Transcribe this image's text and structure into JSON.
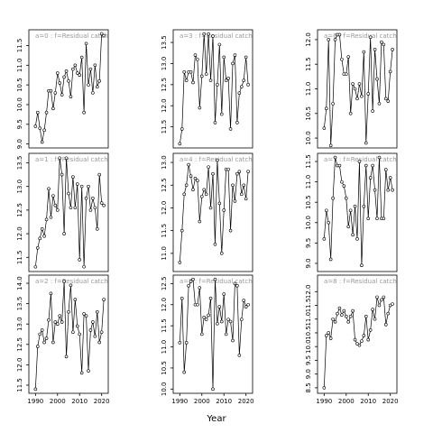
{
  "xlabel": "Year",
  "chart_data": [
    {
      "type": "line",
      "title": "a=0 : f=Residual catch",
      "color": "#000000",
      "xlim": [
        1987,
        2023
      ],
      "ylim": [
        8.9,
        11.9
      ],
      "yticks": [
        {
          "value": 9,
          "label": "9.0"
        },
        9.5,
        {
          "value": 10,
          "label": "10.0"
        },
        10.5,
        {
          "value": 11,
          "label": "11.0"
        },
        11.5
      ],
      "x": [
        1990,
        1991,
        1992,
        1993,
        1994,
        1995,
        1996,
        1997,
        1998,
        1999,
        2000,
        2001,
        2002,
        2003,
        2004,
        2005,
        2006,
        2007,
        2008,
        2009,
        2010,
        2011,
        2012,
        2013,
        2014,
        2015,
        2016,
        2017,
        2018,
        2019,
        2020,
        2021
      ],
      "values": [
        9.45,
        9.8,
        9.4,
        9.05,
        9.35,
        9.8,
        10.35,
        10.35,
        9.9,
        10.3,
        10.8,
        10.55,
        10.25,
        10.7,
        10.85,
        10.6,
        10.2,
        10.9,
        11.0,
        10.8,
        10.75,
        11.2,
        9.8,
        11.55,
        10.5,
        10.9,
        10.3,
        11.0,
        10.45,
        10.6,
        11.8,
        11.75
      ]
    },
    {
      "type": "line",
      "title": "a=3 : f=Residual catch",
      "color": "#000000",
      "xlim": [
        1987,
        2023
      ],
      "ylim": [
        11.0,
        13.8
      ],
      "yticks": [
        11.5,
        {
          "value": 12,
          "label": "12.0"
        },
        12.5,
        {
          "value": 13,
          "label": "13.0"
        },
        13.5
      ],
      "x": [
        1990,
        1991,
        1992,
        1993,
        1994,
        1995,
        1996,
        1997,
        1998,
        1999,
        2000,
        2001,
        2002,
        2003,
        2004,
        2005,
        2006,
        2007,
        2008,
        2009,
        2010,
        2011,
        2012,
        2013,
        2014,
        2015,
        2016,
        2017,
        2018,
        2019,
        2020,
        2021
      ],
      "values": [
        11.1,
        11.45,
        12.8,
        12.6,
        12.8,
        12.8,
        12.55,
        13.2,
        13.1,
        11.95,
        12.7,
        13.7,
        12.75,
        13.7,
        12.6,
        13.65,
        11.6,
        12.5,
        13.45,
        11.8,
        13.15,
        12.6,
        12.65,
        11.45,
        13.0,
        13.2,
        11.6,
        12.3,
        12.45,
        12.6,
        13.15,
        12.5
      ]
    },
    {
      "type": "line",
      "title": "a=6 : f=Residual catch",
      "color": "#000000",
      "xlim": [
        1987,
        2023
      ],
      "ylim": [
        9.8,
        12.2
      ],
      "yticks": [
        {
          "value": 10,
          "label": "10.0"
        },
        10.5,
        {
          "value": 11,
          "label": "11.0"
        },
        11.5,
        {
          "value": 12,
          "label": "12.0"
        }
      ],
      "x": [
        1990,
        1991,
        1992,
        1993,
        1994,
        1995,
        1996,
        1997,
        1998,
        1999,
        2000,
        2001,
        2002,
        2003,
        2004,
        2005,
        2006,
        2007,
        2008,
        2009,
        2010,
        2011,
        2012,
        2013,
        2014,
        2015,
        2016,
        2017,
        2018,
        2019,
        2020,
        2021
      ],
      "values": [
        10.2,
        10.6,
        12.0,
        9.85,
        10.7,
        12.0,
        12.1,
        12.1,
        11.6,
        11.3,
        11.3,
        11.65,
        10.5,
        11.1,
        11.0,
        10.8,
        11.1,
        10.85,
        11.75,
        9.9,
        10.9,
        12.05,
        10.55,
        11.8,
        11.2,
        10.7,
        11.95,
        11.9,
        10.8,
        10.75,
        11.35,
        11.8
      ]
    },
    {
      "type": "line",
      "title": "a=1 : f=Residual catch",
      "color": "#000000",
      "xlim": [
        1987,
        2023
      ],
      "ylim": [
        11.2,
        13.7
      ],
      "yticks": [
        11.5,
        {
          "value": 12,
          "label": "12.0"
        },
        12.5,
        {
          "value": 13,
          "label": "13.0"
        },
        13.5
      ],
      "x": [
        1990,
        1991,
        1992,
        1993,
        1994,
        1995,
        1996,
        1997,
        1998,
        1999,
        2000,
        2001,
        2002,
        2003,
        2004,
        2005,
        2006,
        2007,
        2008,
        2009,
        2010,
        2011,
        2012,
        2013,
        2014,
        2015,
        2016,
        2017,
        2018,
        2019,
        2020,
        2021
      ],
      "values": [
        11.3,
        11.7,
        11.9,
        12.1,
        11.95,
        12.3,
        12.95,
        12.35,
        12.8,
        12.6,
        12.5,
        13.6,
        13.25,
        12.0,
        13.6,
        12.85,
        12.55,
        13.2,
        12.55,
        13.05,
        11.45,
        13.0,
        11.3,
        12.75,
        13.0,
        12.5,
        12.75,
        12.55,
        12.1,
        13.25,
        12.65,
        12.6
      ]
    },
    {
      "type": "line",
      "title": "a=4 : f=Residual catch",
      "color": "#000000",
      "xlim": [
        1987,
        2023
      ],
      "ylim": [
        10.6,
        13.2
      ],
      "yticks": [
        {
          "value": 11,
          "label": "11.0"
        },
        11.5,
        {
          "value": 12,
          "label": "12.0"
        },
        12.5,
        {
          "value": 13,
          "label": "13.0"
        }
      ],
      "x": [
        1990,
        1991,
        1992,
        1993,
        1994,
        1995,
        1996,
        1997,
        1998,
        1999,
        2000,
        2001,
        2002,
        2003,
        2004,
        2005,
        2006,
        2007,
        2008,
        2009,
        2010,
        2011,
        2012,
        2013,
        2014,
        2015,
        2016,
        2017,
        2018,
        2019,
        2020,
        2021
      ],
      "values": [
        10.8,
        11.5,
        12.3,
        12.5,
        12.95,
        12.7,
        12.4,
        12.65,
        12.6,
        11.7,
        12.25,
        12.4,
        12.3,
        12.9,
        12.0,
        12.75,
        11.2,
        13.05,
        12.1,
        11.0,
        11.95,
        12.85,
        12.85,
        11.5,
        12.5,
        12.15,
        12.75,
        12.8,
        12.3,
        12.5,
        12.2,
        12.8
      ]
    },
    {
      "type": "line",
      "title": "a=7 : f=Residual catch",
      "color": "#000000",
      "xlim": [
        1987,
        2023
      ],
      "ylim": [
        8.8,
        11.7
      ],
      "yticks": [
        {
          "value": 9,
          "label": "9.0"
        },
        9.5,
        {
          "value": 10,
          "label": "10.0"
        },
        10.5,
        {
          "value": 11,
          "label": "11.0"
        },
        11.5
      ],
      "x": [
        1990,
        1991,
        1992,
        1993,
        1994,
        1995,
        1996,
        1997,
        1998,
        1999,
        2000,
        2001,
        2002,
        2003,
        2004,
        2005,
        2006,
        2007,
        2008,
        2009,
        2010,
        2011,
        2012,
        2013,
        2014,
        2015,
        2016,
        2017,
        2018,
        2019,
        2020,
        2021
      ],
      "values": [
        9.6,
        10.3,
        10.0,
        9.1,
        10.6,
        11.6,
        11.4,
        11.4,
        11.0,
        10.9,
        10.6,
        9.9,
        10.3,
        9.7,
        10.4,
        9.6,
        11.5,
        8.95,
        10.4,
        11.4,
        10.1,
        11.1,
        11.4,
        10.8,
        10.1,
        11.6,
        10.1,
        10.1,
        11.3,
        10.8,
        11.1,
        10.8
      ]
    },
    {
      "type": "line",
      "title": "a=2 : f=Residual catch",
      "color": "#000000",
      "xlim": [
        1987,
        2023
      ],
      "ylim": [
        11.3,
        14.2
      ],
      "xticks": [
        1990,
        2000,
        2010,
        2020
      ],
      "yticks": [
        11.5,
        {
          "value": 12,
          "label": "12.0"
        },
        12.5,
        {
          "value": 13,
          "label": "13.0"
        },
        13.5,
        {
          "value": 14,
          "label": "14.0"
        }
      ],
      "x": [
        1990,
        1991,
        1992,
        1993,
        1994,
        1995,
        1996,
        1997,
        1998,
        1999,
        2000,
        2001,
        2002,
        2003,
        2004,
        2005,
        2006,
        2007,
        2008,
        2009,
        2010,
        2011,
        2012,
        2013,
        2014,
        2015,
        2016,
        2017,
        2018,
        2019,
        2020,
        2021
      ],
      "values": [
        11.4,
        12.45,
        12.75,
        12.85,
        12.55,
        12.65,
        13.1,
        13.75,
        12.55,
        13.05,
        13.0,
        13.2,
        13.05,
        14.05,
        12.2,
        13.3,
        13.95,
        12.8,
        13.6,
        12.95,
        12.75,
        11.8,
        13.25,
        13.2,
        11.85,
        12.85,
        13.05,
        12.7,
        13.3,
        12.55,
        12.8,
        13.6
      ]
    },
    {
      "type": "line",
      "title": "a=5 : f=Residual catch",
      "color": "#000000",
      "xlim": [
        1987,
        2023
      ],
      "ylim": [
        9.9,
        12.7
      ],
      "xticks": [
        1990,
        2000,
        2010,
        2020
      ],
      "yticks": [
        {
          "value": 10,
          "label": "10.0"
        },
        10.5,
        {
          "value": 11,
          "label": "11.0"
        },
        11.5,
        {
          "value": 12,
          "label": "12.0"
        },
        12.5
      ],
      "x": [
        1990,
        1991,
        1992,
        1993,
        1994,
        1995,
        1996,
        1997,
        1998,
        1999,
        2000,
        2001,
        2002,
        2003,
        2004,
        2005,
        2006,
        2007,
        2008,
        2009,
        2010,
        2011,
        2012,
        2013,
        2014,
        2015,
        2016,
        2017,
        2018,
        2019,
        2020,
        2021
      ],
      "values": [
        11.1,
        12.15,
        10.4,
        11.1,
        12.45,
        12.55,
        12.6,
        12.0,
        12.0,
        12.4,
        11.3,
        11.7,
        11.65,
        11.75,
        12.15,
        10.0,
        12.6,
        11.55,
        11.95,
        11.6,
        12.25,
        11.3,
        11.65,
        11.6,
        11.15,
        12.5,
        12.45,
        10.8,
        11.65,
        12.1,
        11.95,
        12.0
      ]
    },
    {
      "type": "line",
      "title": "a=8 : f=Residual catch",
      "color": "#000000",
      "xlim": [
        1987,
        2023
      ],
      "ylim": [
        8.3,
        12.6
      ],
      "xticks": [
        1990,
        2000,
        2010,
        2020
      ],
      "yticks": [
        8.5,
        {
          "value": 9,
          "label": "9.0"
        },
        9.5,
        {
          "value": 10,
          "label": "10.0"
        },
        10.5,
        {
          "value": 11,
          "label": "11.0"
        },
        11.5,
        {
          "value": 12,
          "label": "12.0"
        }
      ],
      "x": [
        1990,
        1991,
        1992,
        1993,
        1994,
        1995,
        1996,
        1997,
        1998,
        1999,
        2000,
        2001,
        2002,
        2003,
        2004,
        2005,
        2006,
        2007,
        2008,
        2009,
        2010,
        2011,
        2012,
        2013,
        2014,
        2015,
        2016,
        2017,
        2018,
        2019,
        2020,
        2021
      ],
      "values": [
        8.5,
        10.4,
        10.5,
        10.3,
        11.0,
        10.9,
        11.2,
        11.4,
        11.15,
        11.3,
        11.1,
        10.9,
        11.1,
        11.3,
        10.25,
        10.1,
        10.05,
        10.2,
        10.4,
        11.1,
        10.25,
        10.6,
        11.35,
        11.0,
        11.8,
        11.5,
        11.7,
        11.8,
        10.8,
        11.2,
        11.5,
        11.55
      ]
    }
  ]
}
